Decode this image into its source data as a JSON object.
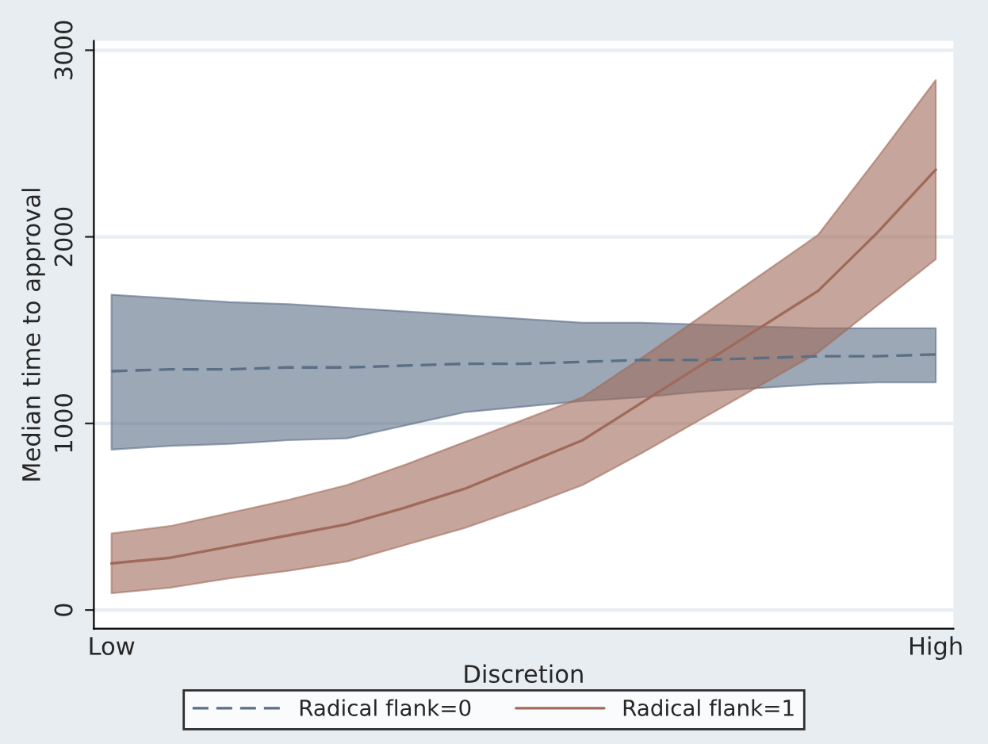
{
  "chart_data": {
    "type": "line",
    "xlabel": "Discretion",
    "ylabel": "Median time to approval",
    "categories": [
      "Low",
      null,
      null,
      null,
      null,
      null,
      null,
      null,
      null,
      null,
      null,
      null,
      null,
      null,
      "High"
    ],
    "ylim": [
      -100,
      3050
    ],
    "yticks": [
      0,
      1000,
      2000,
      3000
    ],
    "grid": "y",
    "legend": "bottom",
    "marker": "none",
    "series": [
      {
        "name": "Radical flank=0",
        "color": "#5a6e85",
        "line_style": "dashed",
        "values": [
          1280,
          1290,
          1290,
          1300,
          1300,
          1310,
          1320,
          1320,
          1330,
          1340,
          1340,
          1350,
          1360,
          1360,
          1370
        ],
        "lower": [
          860,
          880,
          890,
          910,
          920,
          990,
          1060,
          1090,
          1120,
          1140,
          1170,
          1190,
          1210,
          1220,
          1220
        ],
        "upper": [
          1690,
          1670,
          1650,
          1640,
          1620,
          1600,
          1580,
          1560,
          1540,
          1540,
          1530,
          1520,
          1510,
          1510,
          1510
        ]
      },
      {
        "name": "Radical flank=1",
        "color": "#a06a5a",
        "line_style": "solid",
        "values": [
          250,
          280,
          340,
          400,
          460,
          550,
          650,
          780,
          910,
          1110,
          1310,
          1510,
          1710,
          2020,
          2360
        ],
        "lower": [
          90,
          120,
          170,
          210,
          260,
          350,
          440,
          550,
          670,
          840,
          1020,
          1200,
          1380,
          1630,
          1880
        ],
        "upper": [
          410,
          450,
          520,
          590,
          670,
          780,
          900,
          1020,
          1140,
          1350,
          1570,
          1790,
          2010,
          2420,
          2840
        ]
      }
    ]
  }
}
